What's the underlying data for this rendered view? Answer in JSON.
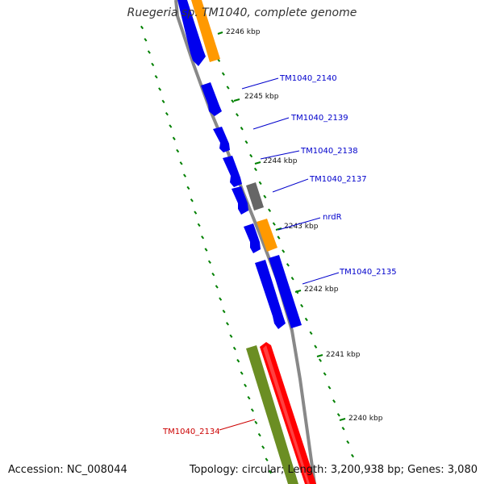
{
  "title": "Ruegeria sp. TM1040, complete genome",
  "accession_label": "Accession: NC_008044",
  "topology_label": "Topology: circular; Length: 3,200,938 bp; Genes: 3,080",
  "colors": {
    "backbone": "#888888",
    "cds": "#0000ee",
    "orange": "#ff9900",
    "gray": "#666666",
    "olive": "#6b8e23",
    "red": "#ff0000",
    "tick": "#008000",
    "label_blue": "#0000cc",
    "label_red": "#cc0000"
  },
  "ruler": [
    "2246 kbp",
    "2245 kbp",
    "2244 kbp",
    "2243 kbp",
    "2242 kbp",
    "2241 kbp",
    "2240 kbp"
  ],
  "gene_labels": [
    {
      "text": "TM1040_2140",
      "color": "blue"
    },
    {
      "text": "TM1040_2139",
      "color": "blue"
    },
    {
      "text": "TM1040_2138",
      "color": "blue"
    },
    {
      "text": "TM1040_2137",
      "color": "blue"
    },
    {
      "text": "nrdR",
      "color": "blue"
    },
    {
      "text": "TM1040_2135",
      "color": "blue"
    },
    {
      "text": "TM1040_2134",
      "color": "red"
    }
  ]
}
